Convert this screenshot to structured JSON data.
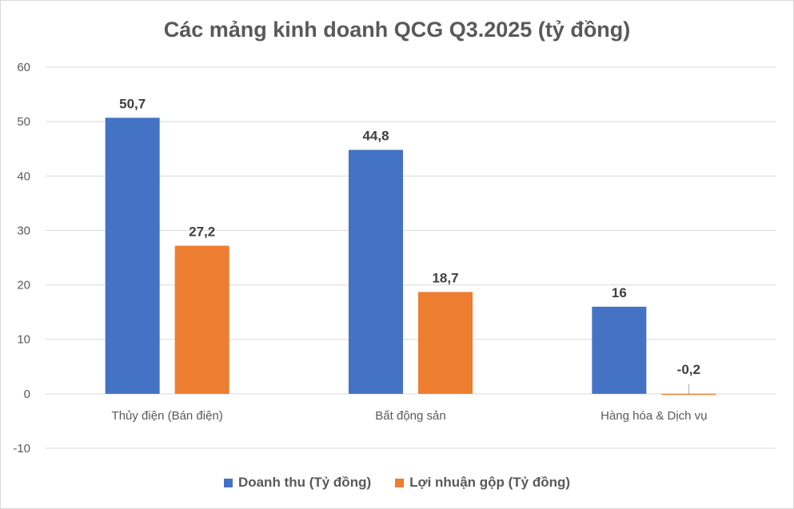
{
  "chart_data": {
    "type": "bar",
    "title": "Các mảng kinh doanh QCG Q3.2025 (tỷ đồng)",
    "categories": [
      "Thủy điện (Bán điện)",
      "Bất động sản",
      "Hàng hóa & Dịch vụ"
    ],
    "series": [
      {
        "name": "Doanh thu (Tỷ đồng)",
        "values": [
          50.7,
          44.8,
          16
        ],
        "labels": [
          "50,7",
          "44,8",
          "16"
        ],
        "color": "#4472c4"
      },
      {
        "name": "Lợi nhuận gộp (Tỷ đồng)",
        "values": [
          27.2,
          18.7,
          -0.2
        ],
        "labels": [
          "27,2",
          "18,7",
          "-0,2"
        ],
        "color": "#ed7d31"
      }
    ],
    "ylim": [
      -10,
      60
    ],
    "yticks": [
      "-10",
      "0",
      "10",
      "20",
      "30",
      "40",
      "50",
      "60"
    ],
    "grid": true,
    "legend_position": "bottom",
    "xlabel": "",
    "ylabel": ""
  }
}
